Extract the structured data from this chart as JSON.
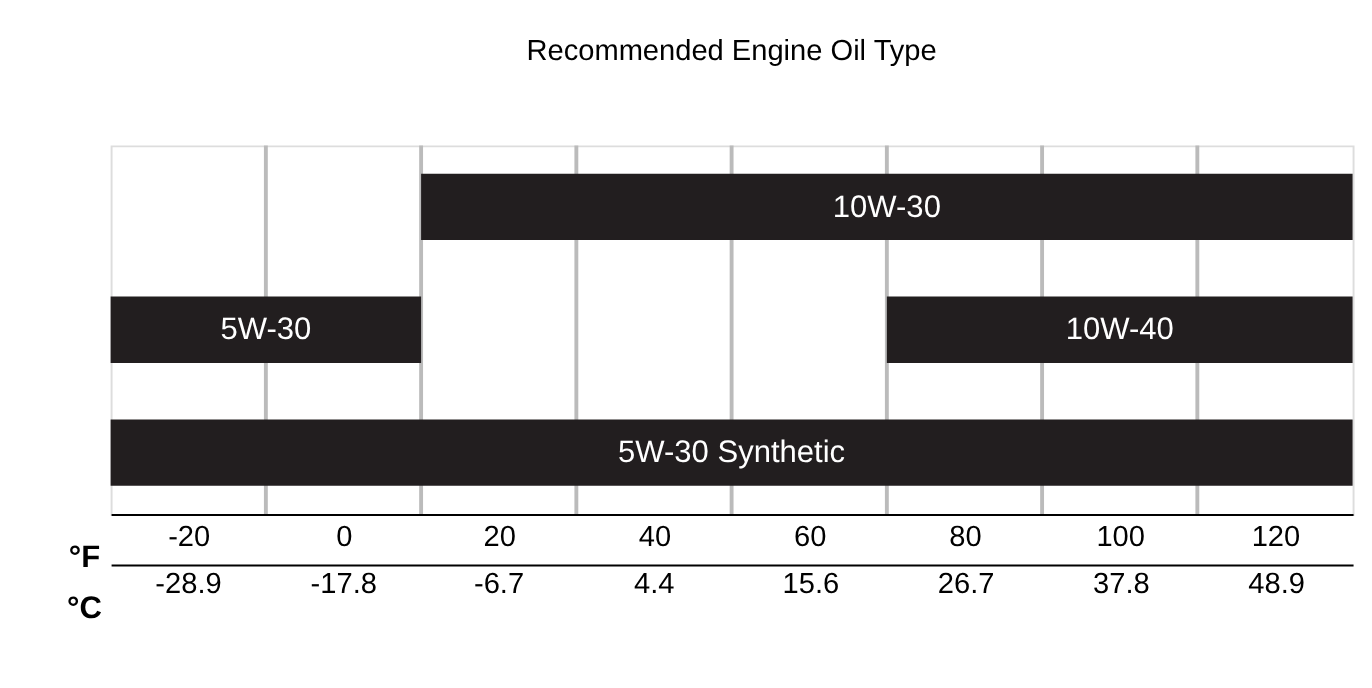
{
  "chart_data": {
    "type": "bar",
    "orientation": "horizontal",
    "title": "Recommended Engine Oil Type",
    "categories": [
      null,
      null,
      null
    ],
    "series": [
      {
        "name": "10W-30",
        "color": "#221e1f",
        "values": [
          120,
          null,
          null
        ],
        "base": [
          10,
          null,
          null
        ]
      },
      {
        "name": "5W-30",
        "color": "#221e1f",
        "values": [
          null,
          40,
          null
        ],
        "base": [
          null,
          -30,
          null
        ]
      },
      {
        "name": "10W-40",
        "color": "#221e1f",
        "values": [
          null,
          60,
          null
        ],
        "base": [
          null,
          70,
          null
        ]
      },
      {
        "name": "5W-30 Synthetic",
        "color": "#221e1f",
        "values": [
          null,
          null,
          160
        ],
        "base": [
          null,
          null,
          -30
        ]
      }
    ],
    "xlabel": "°F",
    "xlim": [
      -30,
      130
    ],
    "xticks": [
      -20,
      {
        "value": -10,
        "label": null
      },
      0,
      {
        "value": 10,
        "label": null
      },
      20,
      {
        "value": 30,
        "label": null
      },
      40,
      {
        "value": 50,
        "label": null
      },
      60,
      {
        "value": 70,
        "label": null
      },
      80,
      {
        "value": 90,
        "label": null
      },
      100,
      {
        "value": 110,
        "label": null
      },
      120
    ],
    "x2label": "°C",
    "x2lim": [
      -34.4,
      54.4
    ],
    "x2ticks": [
      -28.9,
      -17.8,
      -6.7,
      4.4,
      15.6,
      26.7,
      37.8,
      48.9
    ],
    "grid": "x"
  }
}
